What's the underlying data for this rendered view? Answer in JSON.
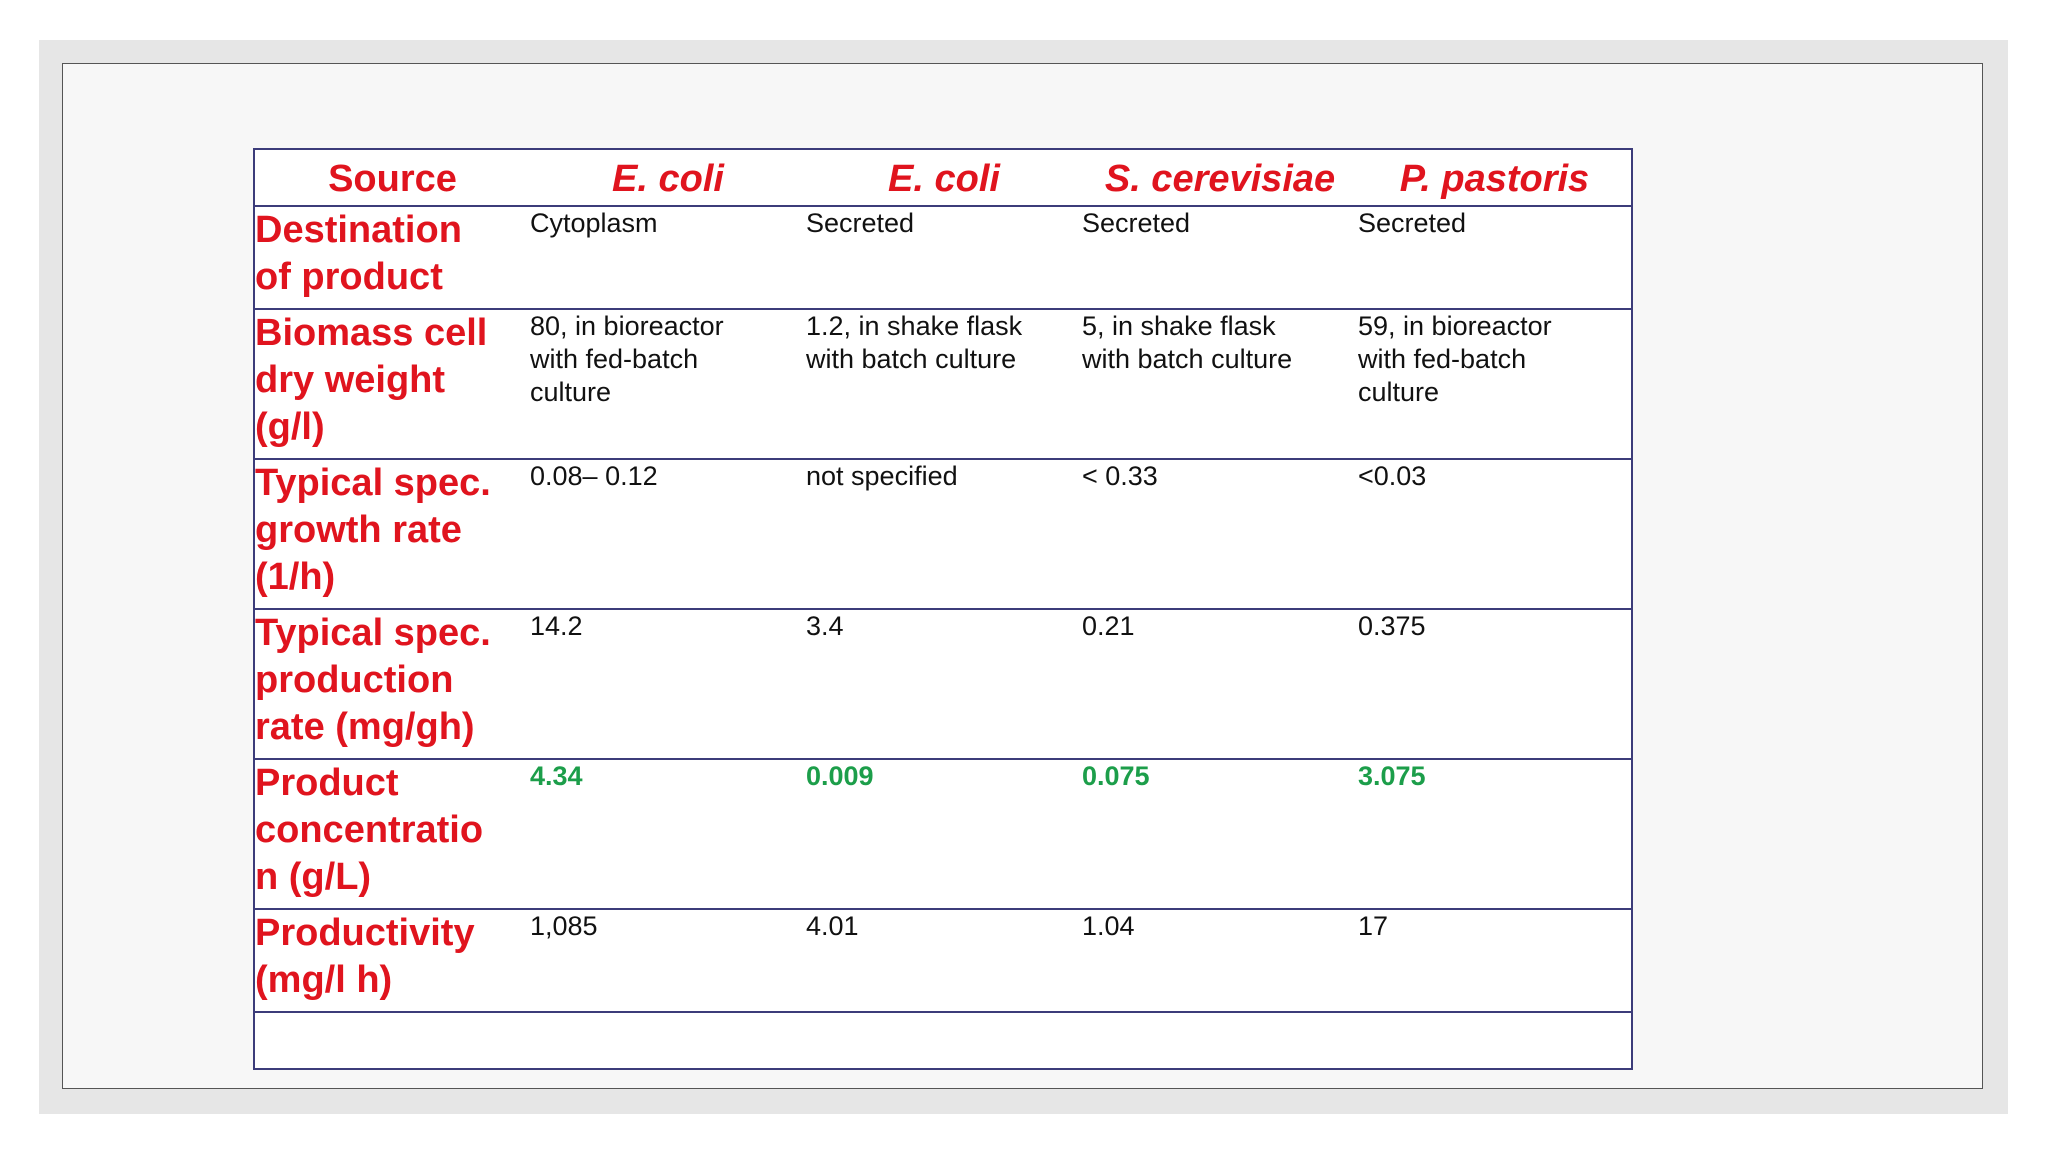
{
  "table": {
    "headers": [
      "Source",
      "E. coli",
      "E. coli",
      "S. cerevisiae",
      "P. pastoris"
    ],
    "rows": [
      {
        "label_lines": [
          "Destination",
          "of product"
        ],
        "values": [
          [
            "Cytoplasm"
          ],
          [
            "Secreted"
          ],
          [
            "Secreted"
          ],
          [
            "Secreted"
          ]
        ]
      },
      {
        "label_lines": [
          "Biomass cell",
          "dry weight",
          "(g/l)"
        ],
        "values": [
          [
            "80, in bioreactor",
            "with fed-batch",
            "culture"
          ],
          [
            "1.2, in shake flask",
            "with batch culture"
          ],
          [
            "5, in shake flask",
            "with batch culture"
          ],
          [
            "59, in bioreactor",
            "with fed-batch",
            "culture"
          ]
        ]
      },
      {
        "label_lines": [
          "Typical spec.",
          "growth rate",
          "(1/h)"
        ],
        "values": [
          [
            "0.08– 0.12"
          ],
          [
            "not specified"
          ],
          [
            "< 0.33"
          ],
          [
            "<0.03"
          ]
        ]
      },
      {
        "label_lines": [
          "Typical spec.",
          "production",
          "rate (mg/gh)"
        ],
        "values": [
          [
            "14.2"
          ],
          [
            "3.4"
          ],
          [
            "0.21"
          ],
          [
            "0.375"
          ]
        ]
      },
      {
        "label_lines": [
          "Product",
          "concentratio",
          "n (g/L)"
        ],
        "values": [
          [
            "4.34"
          ],
          [
            "0.009"
          ],
          [
            "0.075"
          ],
          [
            "3.075"
          ]
        ]
      },
      {
        "label_lines": [
          "Productivity",
          "(mg/l h)"
        ],
        "values": [
          [
            "1,085"
          ],
          [
            "4.01"
          ],
          [
            "1.04"
          ],
          [
            "17"
          ]
        ]
      }
    ],
    "highlight_color": "#1c9e4a",
    "label_color": "#e0141e",
    "border_color": "#3c3c7a"
  }
}
